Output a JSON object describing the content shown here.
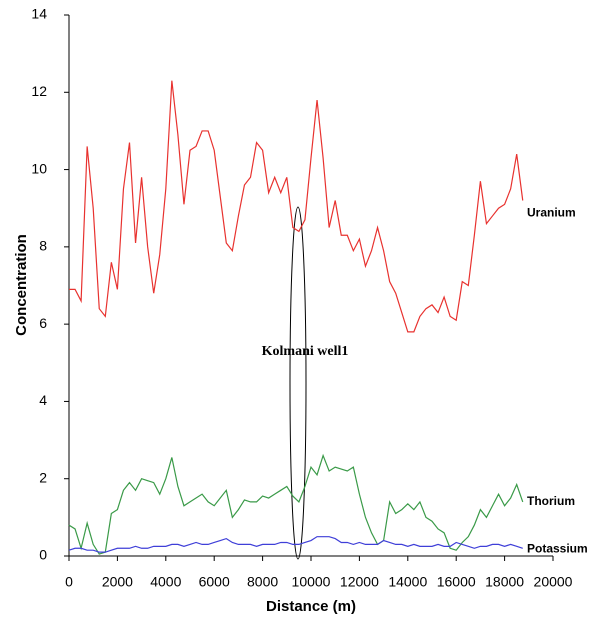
{
  "chart_data": {
    "type": "line",
    "x_label": "Distance (m)",
    "y_label": "Concentration",
    "annotation": "Kolmani well1",
    "x": [
      0,
      250,
      500,
      750,
      1000,
      1250,
      1500,
      1750,
      2000,
      2250,
      2500,
      2750,
      3000,
      3250,
      3500,
      3750,
      4000,
      4250,
      4500,
      4750,
      5000,
      5250,
      5500,
      5750,
      6000,
      6250,
      6500,
      6750,
      7000,
      7250,
      7500,
      7750,
      8000,
      8250,
      8500,
      8750,
      9000,
      9250,
      9500,
      9750,
      10000,
      10250,
      10500,
      10750,
      11000,
      11250,
      11500,
      11750,
      12000,
      12250,
      12500,
      12750,
      13000,
      13250,
      13500,
      13750,
      14000,
      14250,
      14500,
      14750,
      15000,
      15250,
      15500,
      15750,
      16000,
      16250,
      16500,
      16750,
      17000,
      17250,
      17500,
      17750,
      18000,
      18250,
      18500,
      18750
    ],
    "series": [
      {
        "name": "Uranium",
        "color": "#e8322f",
        "values": [
          6.9,
          6.9,
          6.6,
          10.6,
          9.0,
          6.4,
          6.2,
          7.6,
          6.9,
          9.5,
          10.7,
          8.1,
          9.8,
          8.0,
          6.8,
          7.8,
          9.5,
          12.3,
          10.9,
          9.1,
          10.5,
          10.6,
          11.0,
          11.0,
          10.5,
          9.3,
          8.1,
          7.9,
          8.8,
          9.6,
          9.8,
          10.7,
          10.5,
          9.4,
          9.8,
          9.4,
          9.8,
          8.5,
          8.4,
          8.7,
          10.3,
          11.8,
          10.3,
          8.5,
          9.2,
          8.3,
          8.3,
          7.9,
          8.2,
          7.5,
          7.9,
          8.5,
          7.9,
          7.1,
          6.8,
          6.3,
          5.8,
          5.8,
          6.2,
          6.4,
          6.5,
          6.3,
          6.7,
          6.2,
          6.1,
          7.1,
          7.0,
          8.3,
          9.7,
          8.6,
          8.8,
          9.0,
          9.1,
          9.5,
          10.4,
          9.2
        ]
      },
      {
        "name": "Thorium",
        "color": "#3a9a48",
        "values": [
          0.8,
          0.7,
          0.2,
          0.85,
          0.3,
          0.05,
          0.1,
          1.1,
          1.2,
          1.7,
          1.9,
          1.7,
          2.0,
          1.95,
          1.9,
          1.6,
          2.0,
          2.55,
          1.8,
          1.3,
          1.4,
          1.5,
          1.6,
          1.4,
          1.3,
          1.5,
          1.7,
          1.0,
          1.2,
          1.45,
          1.4,
          1.4,
          1.55,
          1.5,
          1.6,
          1.7,
          1.8,
          1.55,
          1.4,
          1.8,
          2.3,
          2.1,
          2.6,
          2.2,
          2.3,
          2.25,
          2.2,
          2.3,
          1.6,
          1.0,
          0.6,
          0.3,
          0.4,
          1.4,
          1.1,
          1.2,
          1.35,
          1.2,
          1.4,
          1.0,
          0.9,
          0.7,
          0.6,
          0.2,
          0.15,
          0.35,
          0.5,
          0.8,
          1.2,
          1.0,
          1.3,
          1.6,
          1.3,
          1.5,
          1.85,
          1.4
        ]
      },
      {
        "name": "Potassium",
        "color": "#3f3fd8",
        "values": [
          0.15,
          0.2,
          0.2,
          0.15,
          0.15,
          0.1,
          0.1,
          0.15,
          0.2,
          0.2,
          0.2,
          0.25,
          0.2,
          0.2,
          0.25,
          0.25,
          0.25,
          0.3,
          0.3,
          0.25,
          0.3,
          0.35,
          0.3,
          0.3,
          0.35,
          0.4,
          0.45,
          0.35,
          0.3,
          0.3,
          0.3,
          0.25,
          0.3,
          0.3,
          0.3,
          0.35,
          0.35,
          0.3,
          0.3,
          0.35,
          0.4,
          0.5,
          0.5,
          0.5,
          0.45,
          0.35,
          0.35,
          0.3,
          0.35,
          0.3,
          0.3,
          0.3,
          0.4,
          0.35,
          0.3,
          0.3,
          0.25,
          0.3,
          0.25,
          0.25,
          0.25,
          0.3,
          0.25,
          0.25,
          0.35,
          0.3,
          0.25,
          0.2,
          0.25,
          0.25,
          0.3,
          0.3,
          0.25,
          0.3,
          0.25,
          0.2
        ]
      }
    ],
    "xlim": [
      0,
      20000
    ],
    "xticks": [
      0,
      2000,
      4000,
      6000,
      8000,
      10000,
      12000,
      14000,
      16000,
      18000,
      20000
    ],
    "ylim": [
      0,
      14
    ],
    "yticks": [
      0,
      2,
      4,
      6,
      8,
      10,
      12,
      14
    ],
    "grid": false
  }
}
